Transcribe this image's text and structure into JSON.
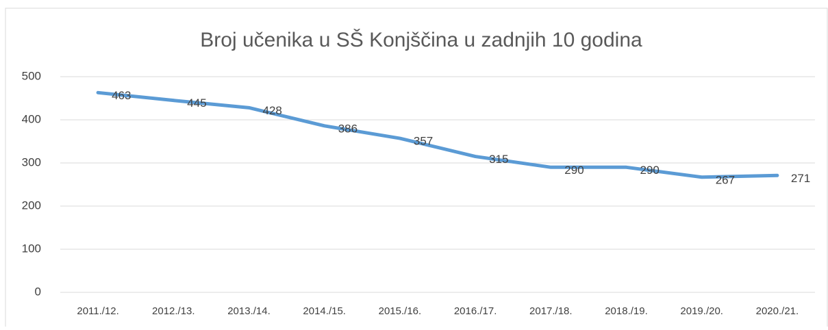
{
  "chart_data": {
    "type": "line",
    "title": "Broj učenika u SŠ Konjščina u zadnjih 10 godina",
    "categories": [
      "2011./12.",
      "2012./13.",
      "2013./14.",
      "2014./15.",
      "2015./16.",
      "2016./17.",
      "2017./18.",
      "2018./19.",
      "2019./20.",
      "2020./21."
    ],
    "values": [
      463,
      445,
      428,
      386,
      357,
      315,
      290,
      290,
      267,
      271
    ],
    "color": "#5b9bd5",
    "ylim": [
      0,
      500
    ],
    "yticks": [
      0,
      100,
      200,
      300,
      400,
      500
    ],
    "grid": true
  }
}
